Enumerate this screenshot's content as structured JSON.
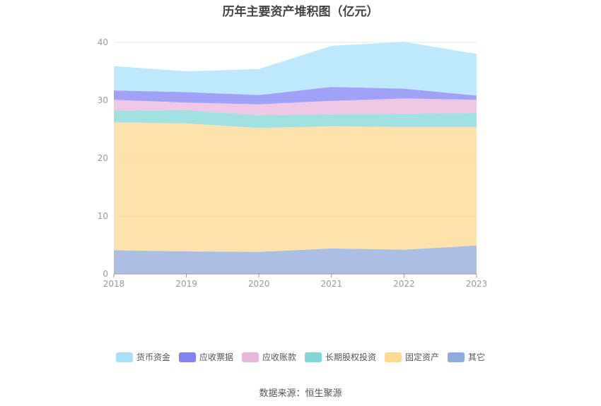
{
  "chart_data": {
    "type": "area",
    "stacked": true,
    "title": "历年主要资产堆积图（亿元）",
    "x": [
      "2018",
      "2019",
      "2020",
      "2021",
      "2022",
      "2023"
    ],
    "ylim": [
      0,
      40
    ],
    "yticks": [
      "0",
      "10",
      "20",
      "30",
      "40"
    ],
    "grid": true,
    "legend_position": "bottom",
    "series": [
      {
        "name": "其它",
        "color": "#8faadc",
        "values": [
          4.1,
          3.9,
          3.8,
          4.4,
          4.2,
          4.9
        ]
      },
      {
        "name": "固定资产",
        "color": "#fcd891",
        "values": [
          22.1,
          22.1,
          21.4,
          21.1,
          21.2,
          20.5
        ]
      },
      {
        "name": "长期股权投资",
        "color": "#84d5d7",
        "values": [
          2.0,
          2.3,
          2.2,
          2.1,
          2.3,
          2.4
        ]
      },
      {
        "name": "应收账款",
        "color": "#e9b6dd",
        "values": [
          1.9,
          1.3,
          1.9,
          2.3,
          2.6,
          2.3
        ]
      },
      {
        "name": "应收票据",
        "color": "#7f83f4",
        "values": [
          1.6,
          1.8,
          1.6,
          2.4,
          1.7,
          0.7
        ]
      },
      {
        "name": "货币资金",
        "color": "#a8e0f9",
        "values": [
          4.2,
          3.6,
          4.5,
          7.1,
          8.1,
          7.2
        ]
      }
    ]
  },
  "legend_order": [
    "货币资金",
    "应收票据",
    "应收账款",
    "长期股权投资",
    "固定资产",
    "其它"
  ],
  "source": "数据来源：恒生聚源"
}
